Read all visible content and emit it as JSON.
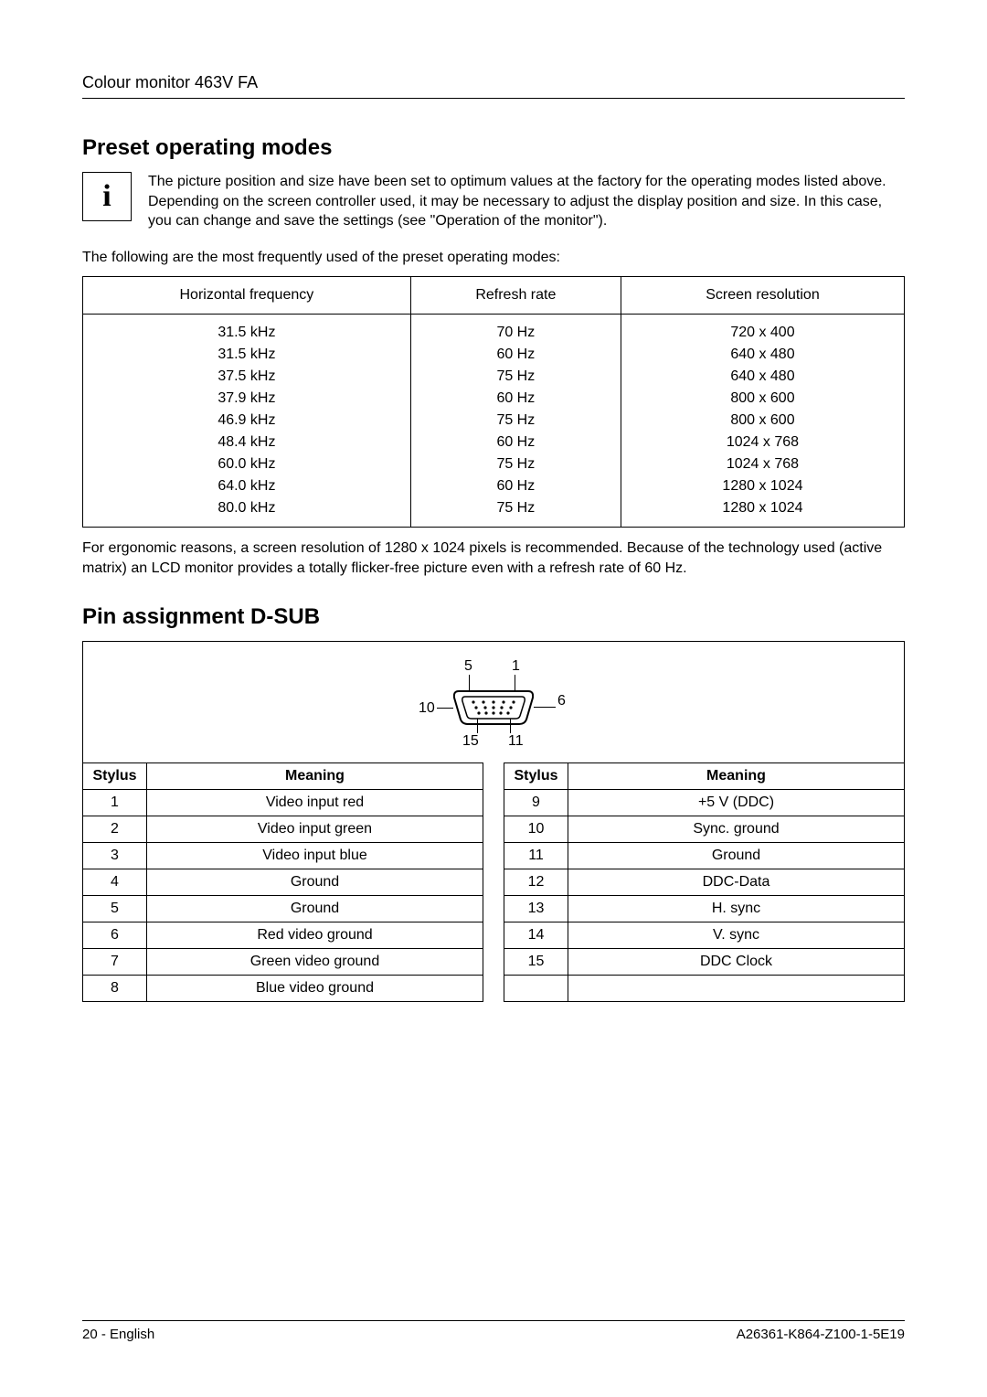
{
  "header": {
    "title": "Colour monitor 463V FA"
  },
  "preset": {
    "heading": "Preset operating modes",
    "info_letter": "i",
    "info_text": "The picture position and size have been set to optimum values at the factory for the operating modes listed above. Depending on the screen controller used, it may be necessary to adjust the display position and size. In this case, you can change and save the settings (see \"Operation of the monitor\").",
    "intro": "The following are the most frequently used of the preset operating modes:",
    "table": {
      "type": "table",
      "columns": [
        "Horizontal frequency",
        "Refresh rate",
        "Screen resolution"
      ],
      "rows": [
        [
          "31.5 kHz",
          "70 Hz",
          "720 x 400"
        ],
        [
          "31.5 kHz",
          "60 Hz",
          "640 x 480"
        ],
        [
          "37.5 kHz",
          "75 Hz",
          "640 x 480"
        ],
        [
          "37.9 kHz",
          "60 Hz",
          "800 x 600"
        ],
        [
          "46.9 kHz",
          "75 Hz",
          "800 x 600"
        ],
        [
          "48.4 kHz",
          "60 Hz",
          "1024 x 768"
        ],
        [
          "60.0 kHz",
          "75 Hz",
          "1024 x 768"
        ],
        [
          "64.0 kHz",
          "60 Hz",
          "1280 x 1024"
        ],
        [
          "80.0 kHz",
          "75 Hz",
          "1280 x 1024"
        ]
      ]
    },
    "note": "For ergonomic reasons, a screen resolution of 1280 x 1024 pixels is recommended. Because of the technology used (active matrix) an LCD monitor provides a totally flicker-free picture even with a refresh rate of 60 Hz."
  },
  "pins": {
    "heading": "Pin assignment D-SUB",
    "diagram": {
      "labels": {
        "p1": "1",
        "p5": "5",
        "p6": "6",
        "p10": "10",
        "p11": "11",
        "p15": "15"
      }
    },
    "left": {
      "headers": [
        "Stylus",
        "Meaning"
      ],
      "rows": [
        [
          "1",
          "Video input red"
        ],
        [
          "2",
          "Video input green"
        ],
        [
          "3",
          "Video input blue"
        ],
        [
          "4",
          "Ground"
        ],
        [
          "5",
          "Ground"
        ],
        [
          "6",
          "Red video ground"
        ],
        [
          "7",
          "Green video ground"
        ],
        [
          "8",
          "Blue video ground"
        ]
      ]
    },
    "right": {
      "headers": [
        "Stylus",
        "Meaning"
      ],
      "rows": [
        [
          "9",
          "+5 V (DDC)"
        ],
        [
          "10",
          "Sync. ground"
        ],
        [
          "11",
          "Ground"
        ],
        [
          "12",
          "DDC-Data"
        ],
        [
          "13",
          "H. sync"
        ],
        [
          "14",
          "V. sync"
        ],
        [
          "15",
          "DDC Clock"
        ],
        [
          "",
          ""
        ]
      ]
    }
  },
  "footer": {
    "left": "20 - English",
    "right": "A26361-K864-Z100-1-5E19"
  }
}
